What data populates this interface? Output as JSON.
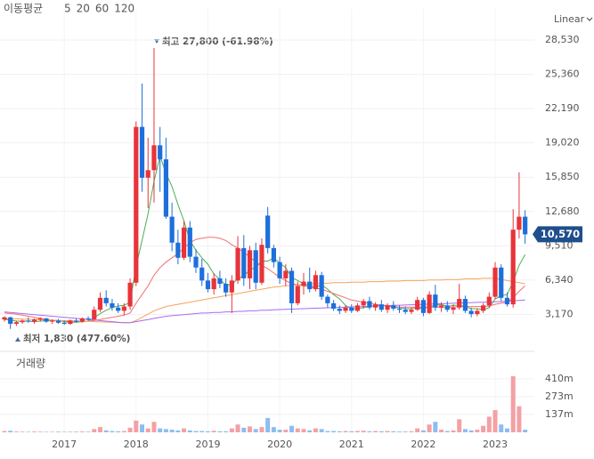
{
  "chart_data": {
    "type": "candlestick",
    "legend_title": "이동평균",
    "scale_label": "Linear",
    "volume_title": "거래량",
    "categories": [
      null,
      null,
      null,
      null,
      null,
      null,
      null,
      null,
      null,
      null,
      "2017",
      null,
      null,
      null,
      null,
      null,
      null,
      null,
      null,
      null,
      null,
      null,
      "2018",
      null,
      null,
      null,
      null,
      null,
      null,
      null,
      null,
      null,
      null,
      null,
      "2019",
      null,
      null,
      null,
      null,
      null,
      null,
      null,
      null,
      null,
      null,
      null,
      "2020",
      null,
      null,
      null,
      null,
      null,
      null,
      null,
      null,
      null,
      null,
      null,
      "2021",
      null,
      null,
      null,
      null,
      null,
      null,
      null,
      null,
      null,
      null,
      null,
      "2022",
      null,
      null,
      null,
      null,
      null,
      null,
      null,
      null,
      null,
      null,
      null,
      "2023",
      null,
      null,
      null,
      null,
      null
    ],
    "open": [
      2700,
      2900,
      2300,
      2450,
      2600,
      2500,
      2700,
      2800,
      2500,
      2600,
      2400,
      2300,
      2600,
      2500,
      2800,
      2700,
      3600,
      4700,
      4200,
      3800,
      3500,
      3900,
      6100,
      20500,
      15800,
      16500,
      18800,
      17500,
      12200,
      9800,
      8400,
      11200,
      8500,
      7500,
      6300,
      5500,
      6500,
      6000,
      5200,
      6300,
      9300,
      6500,
      9100,
      6100,
      12300,
      9300,
      8000,
      6500,
      7200,
      4200,
      5800,
      6200,
      5500,
      6800,
      4800,
      4200,
      3700,
      3500,
      3800,
      3500,
      4000,
      4400,
      3800,
      4100,
      3600,
      4000,
      3700,
      3600,
      3400,
      3600,
      4500,
      3300,
      5000,
      3800,
      4000,
      3600,
      3800,
      4600,
      3500,
      3200,
      3500,
      4000,
      4800,
      7500,
      4700,
      4100,
      11000,
      12200
    ],
    "high": [
      3000,
      2950,
      2600,
      2700,
      2900,
      2800,
      2900,
      2850,
      2700,
      2750,
      2600,
      2700,
      2800,
      2900,
      3000,
      3900,
      5200,
      5400,
      4600,
      4200,
      4200,
      6500,
      21000,
      24500,
      19500,
      27800,
      20500,
      19500,
      13500,
      11000,
      11800,
      11800,
      9200,
      8300,
      7000,
      7000,
      7200,
      6500,
      6800,
      10400,
      10500,
      9500,
      9800,
      10200,
      13100,
      9600,
      8500,
      7800,
      7500,
      6200,
      7000,
      7500,
      7200,
      7100,
      5000,
      4500,
      4000,
      4000,
      4100,
      4200,
      4600,
      4800,
      4300,
      4500,
      4200,
      4400,
      4000,
      3900,
      3800,
      4800,
      4700,
      5300,
      5900,
      4300,
      4400,
      4100,
      6000,
      4900,
      3800,
      3700,
      4200,
      5200,
      8000,
      7800,
      5200,
      12900,
      16300,
      12800
    ],
    "low": [
      2500,
      1830,
      2100,
      2300,
      2400,
      2300,
      2500,
      2400,
      2300,
      2300,
      2200,
      2200,
      2400,
      2400,
      2600,
      2700,
      3400,
      3900,
      3500,
      3300,
      3100,
      3600,
      5800,
      14500,
      13000,
      13500,
      14500,
      12000,
      9000,
      7800,
      8200,
      8000,
      7000,
      5800,
      5200,
      5000,
      5600,
      4800,
      3300,
      6000,
      5800,
      5500,
      5500,
      5900,
      8800,
      7500,
      6000,
      5800,
      3300,
      4000,
      5000,
      5200,
      5300,
      4500,
      3800,
      3500,
      3200,
      3300,
      3300,
      3400,
      3700,
      3600,
      3500,
      3400,
      3300,
      3500,
      3300,
      3200,
      3200,
      3500,
      3000,
      3200,
      3500,
      3400,
      3400,
      3200,
      3600,
      3300,
      2900,
      3000,
      3300,
      3800,
      4600,
      4400,
      3900,
      3800,
      10200,
      9700
    ],
    "close": [
      2900,
      2300,
      2450,
      2600,
      2500,
      2700,
      2800,
      2500,
      2600,
      2400,
      2300,
      2600,
      2500,
      2800,
      2700,
      3600,
      4700,
      4200,
      3800,
      3500,
      3900,
      6100,
      20500,
      15800,
      16500,
      18800,
      17500,
      12200,
      9800,
      8400,
      11200,
      8500,
      7500,
      6300,
      5500,
      6500,
      6000,
      5200,
      6300,
      9300,
      6500,
      9100,
      6100,
      9600,
      9300,
      8000,
      6500,
      7200,
      4200,
      5800,
      6200,
      5500,
      6800,
      4800,
      4200,
      3700,
      3500,
      3800,
      3500,
      4000,
      4400,
      3800,
      4100,
      3600,
      4000,
      3700,
      3600,
      3400,
      3600,
      4500,
      3300,
      5000,
      3800,
      4000,
      3600,
      3800,
      4600,
      3500,
      3200,
      3500,
      4000,
      4800,
      7500,
      4700,
      4100,
      11000,
      12200,
      10570
    ],
    "last_close_label": "10,570",
    "up_color": "#e8333a",
    "down_color": "#1d6fdc",
    "up_volume_color": "#f3a1a4",
    "down_volume_color": "#8dbdf0",
    "series": [
      {
        "name": "5",
        "color": "#4caf50",
        "values": [
          2700,
          2650,
          2550,
          2550,
          2550,
          2500,
          2550,
          2600,
          2600,
          2600,
          2500,
          2450,
          2450,
          2500,
          2550,
          2850,
          3250,
          3550,
          3800,
          3950,
          4000,
          4300,
          7600,
          10000,
          12500,
          15500,
          17800,
          16200,
          15000,
          13300,
          11800,
          10000,
          9100,
          8400,
          7800,
          6900,
          6400,
          5900,
          5900,
          6500,
          6700,
          7300,
          7500,
          8100,
          8100,
          8400,
          7900,
          7500,
          6600,
          6300,
          6000,
          5800,
          5700,
          5900,
          5500,
          5000,
          4600,
          4000,
          3700,
          3700,
          3800,
          3900,
          4000,
          4000,
          4000,
          3800,
          3800,
          3700,
          3700,
          3800,
          3700,
          3900,
          4000,
          4100,
          3900,
          4000,
          4000,
          3900,
          3700,
          3700,
          3600,
          3800,
          4600,
          4900,
          5000,
          6200,
          7700,
          8700
        ]
      },
      {
        "name": "20",
        "color": "#f07070",
        "values": [
          3300,
          3250,
          3200,
          3100,
          3000,
          2900,
          2800,
          2700,
          2650,
          2600,
          2550,
          2530,
          2520,
          2530,
          2540,
          2600,
          2700,
          2800,
          2900,
          3000,
          3100,
          3300,
          4200,
          5000,
          5800,
          6800,
          7500,
          8000,
          8400,
          8800,
          9300,
          9800,
          10100,
          10200,
          10300,
          10300,
          10200,
          10000,
          9600,
          9300,
          8900,
          8500,
          8000,
          7700,
          7400,
          7000,
          6600,
          6300,
          6000,
          5900,
          5800,
          5700,
          5600,
          5500,
          5300,
          5100,
          4900,
          4700,
          4500,
          4400,
          4300,
          4200,
          4100,
          4000,
          3950,
          3900,
          3850,
          3850,
          3850,
          3850,
          3850,
          3850,
          3850,
          3850,
          3850,
          3850,
          3900,
          3900,
          3900,
          3900,
          3900,
          3950,
          4100,
          4200,
          4300,
          4700,
          5300,
          5800
        ]
      },
      {
        "name": "60",
        "color": "#f5a35c",
        "values": [
          2800,
          2780,
          2760,
          2740,
          2720,
          2700,
          2680,
          2660,
          2640,
          2620,
          2600,
          2580,
          2560,
          2540,
          2520,
          2500,
          2480,
          2460,
          2440,
          2420,
          2400,
          2400,
          2600,
          2900,
          3200,
          3500,
          3700,
          3900,
          4000,
          4100,
          4200,
          4300,
          4400,
          4500,
          4600,
          4700,
          4800,
          4900,
          5000,
          5100,
          5200,
          5300,
          5400,
          5500,
          5600,
          5700,
          5750,
          5800,
          5850,
          5900,
          5950,
          6000,
          6000,
          6050,
          6050,
          6100,
          6100,
          6100,
          6150,
          6150,
          6150,
          6200,
          6200,
          6200,
          6250,
          6250,
          6250,
          6300,
          6300,
          6300,
          6300,
          6350,
          6350,
          6350,
          6400,
          6400,
          6400,
          6450,
          6450,
          6450,
          6500,
          6500,
          6500,
          6400,
          6300,
          6200,
          6100,
          6000
        ]
      },
      {
        "name": "120",
        "color": "#a66cf0",
        "values": [
          3400,
          3350,
          3300,
          3250,
          3200,
          3150,
          3100,
          3050,
          3000,
          2950,
          2900,
          2850,
          2800,
          2750,
          2700,
          2650,
          2600,
          2550,
          2500,
          2450,
          2400,
          2400,
          2500,
          2600,
          2700,
          2800,
          2900,
          3000,
          3050,
          3100,
          3150,
          3200,
          3250,
          3300,
          3300,
          3350,
          3350,
          3400,
          3400,
          3450,
          3450,
          3500,
          3500,
          3550,
          3550,
          3600,
          3620,
          3640,
          3660,
          3680,
          3700,
          3720,
          3740,
          3760,
          3780,
          3800,
          3820,
          3840,
          3860,
          3880,
          3900,
          3920,
          3940,
          3960,
          3980,
          4000,
          4020,
          4040,
          4060,
          4080,
          4100,
          4120,
          4140,
          4160,
          4180,
          4200,
          4220,
          4240,
          4260,
          4280,
          4300,
          4320,
          4340,
          4360,
          4380,
          4420,
          4460,
          4500
        ]
      }
    ],
    "volume": [
      10,
      12,
      6,
      5,
      4,
      6,
      5,
      4,
      4,
      5,
      4,
      5,
      5,
      6,
      5,
      25,
      40,
      15,
      10,
      8,
      10,
      35,
      90,
      60,
      30,
      80,
      30,
      25,
      20,
      15,
      30,
      15,
      10,
      10,
      8,
      12,
      8,
      8,
      30,
      60,
      35,
      45,
      25,
      40,
      110,
      40,
      20,
      20,
      50,
      30,
      25,
      15,
      30,
      25,
      10,
      10,
      8,
      10,
      8,
      10,
      12,
      8,
      10,
      8,
      10,
      8,
      6,
      6,
      8,
      30,
      15,
      60,
      80,
      20,
      10,
      15,
      100,
      25,
      15,
      20,
      50,
      120,
      170,
      60,
      30,
      430,
      200,
      20
    ],
    "ylim": [
      0,
      29760
    ],
    "yticks": [
      {
        "value": 3170,
        "label": "3,170"
      },
      {
        "value": 6340,
        "label": "6,340"
      },
      {
        "value": 9510,
        "label": "9,510"
      },
      {
        "value": 12680,
        "label": "12,680"
      },
      {
        "value": 15850,
        "label": "15,850"
      },
      {
        "value": 19020,
        "label": "19,020"
      },
      {
        "value": 22190,
        "label": "22,190"
      },
      {
        "value": 25360,
        "label": "25,360"
      },
      {
        "value": 28530,
        "label": "28,530"
      }
    ],
    "volume_ylim": [
      0,
      600
    ],
    "volume_yticks": [
      {
        "value": 137,
        "label": "137m"
      },
      {
        "value": 273,
        "label": "273m"
      },
      {
        "value": 410,
        "label": "410m"
      }
    ],
    "annotations": [
      {
        "text": "최고 27,800 (-61.98%)"
      },
      {
        "text": "최저 1,830 (477.60%)"
      }
    ],
    "grid": true
  }
}
